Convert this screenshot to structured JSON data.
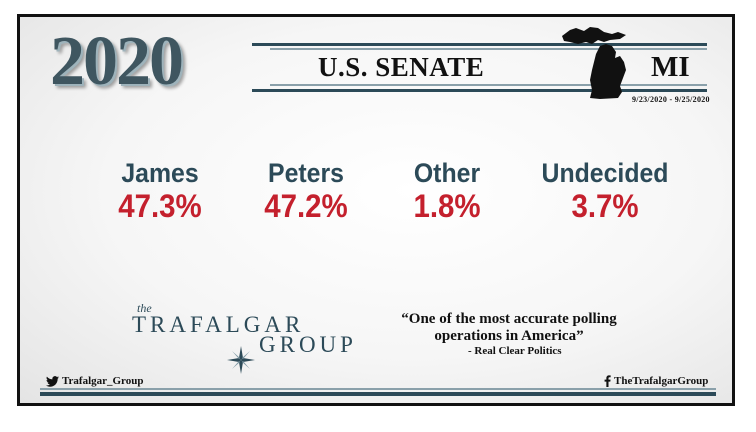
{
  "header": {
    "year": "2020",
    "title": "U.S. SENATE",
    "state": "MI",
    "dates": "9/23/2020 - 9/25/2020"
  },
  "results": [
    {
      "name": "James",
      "pct": "47.3%"
    },
    {
      "name": "Peters",
      "pct": "47.2%"
    },
    {
      "name": "Other",
      "pct": "1.8%"
    },
    {
      "name": "Undecided",
      "pct": "3.7%"
    }
  ],
  "logo": {
    "the": "the",
    "line1": "TRAFALGAR",
    "line2": "GROUP"
  },
  "quote": {
    "text": "“One of the most accurate polling operations in America”",
    "source": "- Real Clear Politics"
  },
  "footer": {
    "twitter": "Trafalgar_Group",
    "facebook": "TheTrafalgarGroup"
  },
  "colors": {
    "name_color": "#2c4a58",
    "pct_color": "#c4202d",
    "bar_color": "#2c4a58"
  },
  "icons": {
    "twitter": "twitter-bird-icon",
    "facebook": "facebook-f-icon",
    "state_map": "michigan-map-icon",
    "compass": "compass-rose-icon"
  }
}
